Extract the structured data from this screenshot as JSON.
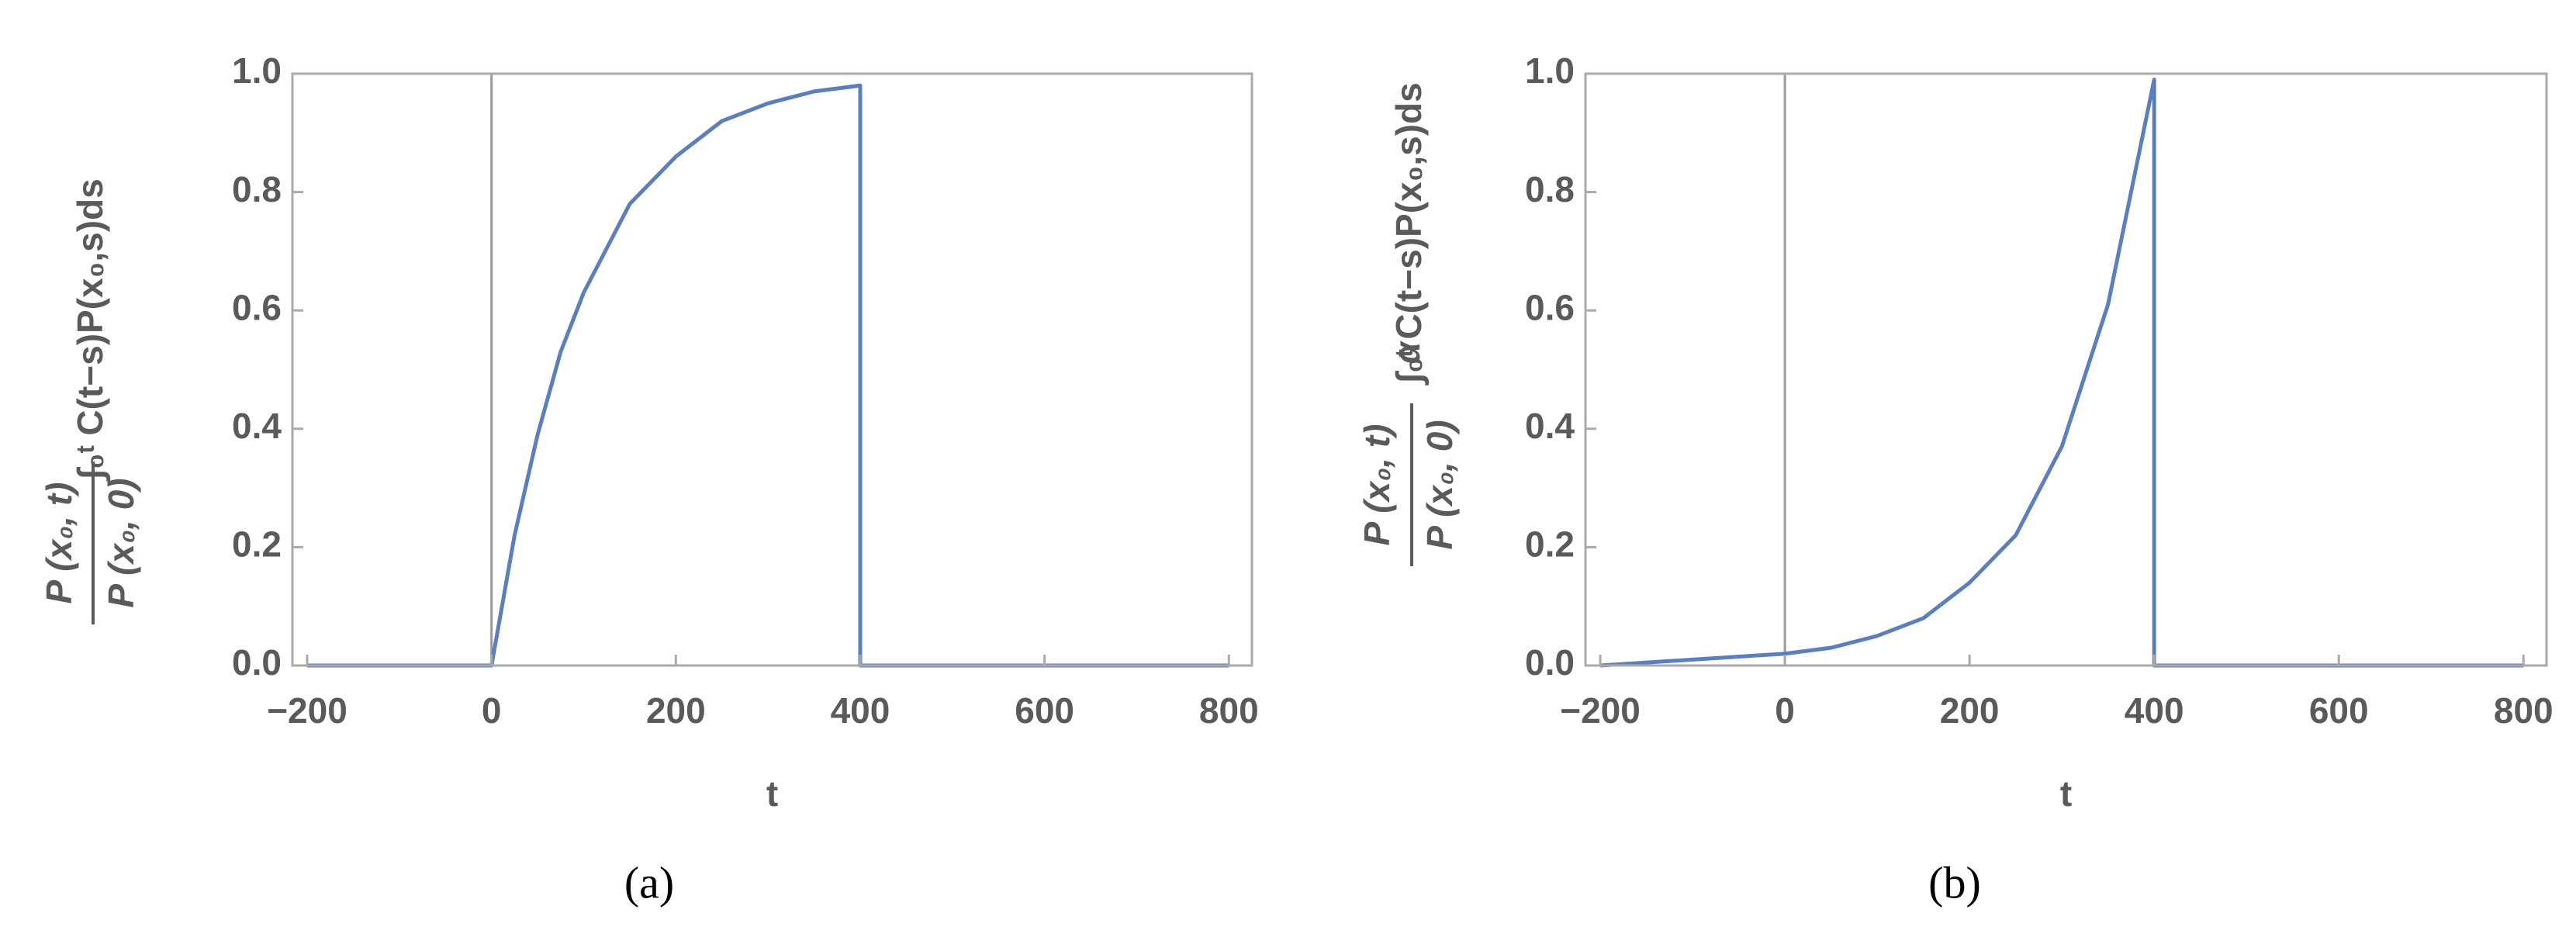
{
  "chart_data": [
    {
      "type": "line",
      "panel_label": "(a)",
      "xlabel": "t",
      "ylabel": {
        "numerator": "P (x₀, t)",
        "denominator": "P (x₀, 0)",
        "integral": "∫₀ᵗ C(t−s)P(x₀,s)ds"
      },
      "x": [
        -200,
        0,
        25,
        50,
        75,
        100,
        150,
        200,
        250,
        300,
        350,
        400,
        400,
        800
      ],
      "series": [
        {
          "color": "#5b7fbd",
          "values": [
            0,
            0,
            0.22,
            0.39,
            0.53,
            0.63,
            0.78,
            0.86,
            0.92,
            0.95,
            0.97,
            0.98,
            0,
            0
          ]
        }
      ],
      "xlim": [
        -216,
        825
      ],
      "ylim": [
        0,
        1
      ],
      "xticks": [
        {
          "value": -200,
          "label": "−200"
        },
        0,
        200,
        400,
        600,
        800
      ],
      "yticks": [
        {
          "value": 0,
          "label": "0.0"
        },
        0.2,
        0.4,
        0.6,
        0.8,
        {
          "value": 1,
          "label": "1.0"
        }
      ]
    },
    {
      "type": "line",
      "panel_label": "(b)",
      "xlabel": "t",
      "ylabel": {
        "numerator": "P (x₀, t)",
        "denominator": "P (x₀, 0)",
        "factor": "α",
        "integral": "∫₀ᵗ C(t−s)P(x₀,s)ds"
      },
      "x": [
        -200,
        0,
        50,
        100,
        150,
        200,
        250,
        300,
        350,
        400,
        400,
        800
      ],
      "series": [
        {
          "color": "#5b7fbd",
          "values": [
            0,
            0.02,
            0.03,
            0.05,
            0.08,
            0.14,
            0.22,
            0.37,
            0.61,
            0.99,
            0,
            0
          ]
        }
      ],
      "xlim": [
        -216,
        825
      ],
      "ylim": [
        0,
        1
      ],
      "xticks": [
        {
          "value": -200,
          "label": "−200"
        },
        0,
        200,
        400,
        600,
        800
      ],
      "yticks": [
        {
          "value": 0,
          "label": "0.0"
        },
        0.2,
        0.4,
        0.6,
        0.8,
        {
          "value": 1,
          "label": "1.0"
        }
      ]
    }
  ]
}
